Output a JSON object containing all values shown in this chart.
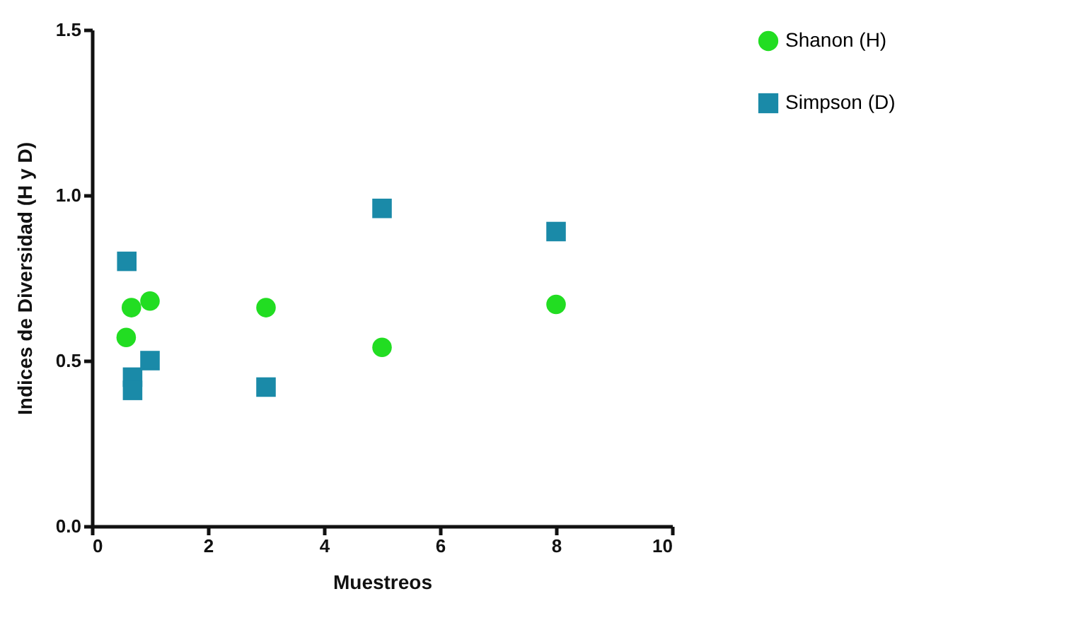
{
  "chart_data": {
    "type": "scatter",
    "xlabel": "Muestreos",
    "ylabel": "Indices de Diversidad (H y D)",
    "series": [
      {
        "name": "Shanon (H)",
        "color": "#22dd22",
        "marker": "circle",
        "x": [
          0.59,
          0.68,
          1.0,
          3,
          5,
          8
        ],
        "values": [
          0.57,
          0.66,
          0.68,
          0.66,
          0.54,
          0.67
        ]
      },
      {
        "name": "Simpson (D)",
        "color": "#1a8aa8",
        "marker": "square",
        "x": [
          0.6,
          0.7,
          0.7,
          1.0,
          3,
          5,
          8
        ],
        "values": [
          0.8,
          0.45,
          0.41,
          0.5,
          0.42,
          0.96,
          0.89
        ]
      }
    ],
    "xlim": [
      0,
      10
    ],
    "xticks": [
      0,
      2,
      4,
      6,
      8,
      10
    ],
    "ylim": [
      0,
      1.5
    ],
    "yticks": [
      {
        "value": 0,
        "label": "0.0"
      },
      {
        "value": 0.5,
        "label": "0.5"
      },
      {
        "value": 1,
        "label": "1.0"
      },
      {
        "value": 1.5,
        "label": "1.5"
      }
    ],
    "grid": false,
    "legend": "right"
  }
}
